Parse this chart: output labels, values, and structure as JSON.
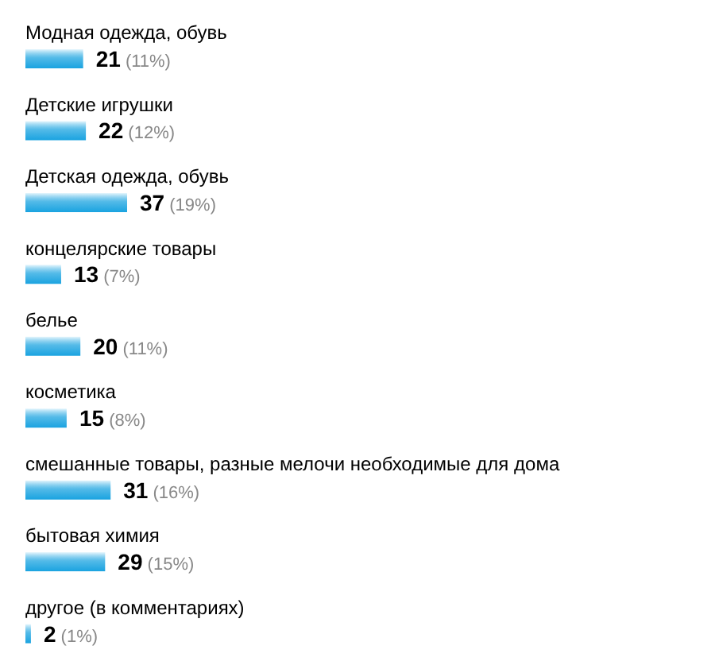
{
  "chart_data": {
    "type": "bar",
    "orientation": "horizontal",
    "tick_labels": "y",
    "categories": [
      "Модная одежда, обувь",
      "Детские игрушки",
      "Детская одежда, обувь",
      "концелярские товары",
      "белье",
      "косметика",
      "смешанные товары, разные мелочи необходимые для дома",
      "бытовая химия",
      "другое (в комментариях)"
    ],
    "values": [
      21,
      22,
      37,
      13,
      20,
      15,
      31,
      29,
      2
    ],
    "value_labels": [
      "21 (11%)",
      "22 (12%)",
      "37 (19%)",
      "13 (7%)",
      "20 (11%)",
      "15 (8%)",
      "31 (16%)",
      "29 (15%)",
      "2 (1%)"
    ],
    "color": "#1aa3e0"
  }
}
